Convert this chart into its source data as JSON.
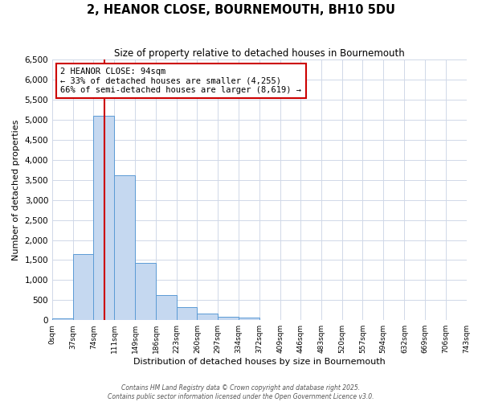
{
  "title": "2, HEANOR CLOSE, BOURNEMOUTH, BH10 5DU",
  "subtitle": "Size of property relative to detached houses in Bournemouth",
  "xlabel": "Distribution of detached houses by size in Bournemouth",
  "ylabel": "Number of detached properties",
  "bar_color": "#c5d8f0",
  "bar_edge_color": "#5b9bd5",
  "background_color": "#ffffff",
  "grid_color": "#d0d8e8",
  "vline_x": 94,
  "vline_color": "#cc0000",
  "bin_edges": [
    0,
    37,
    74,
    111,
    149,
    186,
    223,
    260,
    297,
    334,
    372,
    409,
    446,
    483,
    520,
    557,
    594,
    632,
    669,
    706,
    743
  ],
  "bin_counts": [
    50,
    1650,
    5100,
    3620,
    1430,
    620,
    320,
    155,
    80,
    55,
    0,
    0,
    0,
    0,
    0,
    0,
    0,
    0,
    0,
    0
  ],
  "annotation_title": "2 HEANOR CLOSE: 94sqm",
  "annotation_line1": "← 33% of detached houses are smaller (4,255)",
  "annotation_line2": "66% of semi-detached houses are larger (8,619) →",
  "annotation_box_color": "#ffffff",
  "annotation_box_edge": "#cc0000",
  "footer1": "Contains HM Land Registry data © Crown copyright and database right 2025.",
  "footer2": "Contains public sector information licensed under the Open Government Licence v3.0.",
  "ylim": [
    0,
    6500
  ],
  "yticks": [
    0,
    500,
    1000,
    1500,
    2000,
    2500,
    3000,
    3500,
    4000,
    4500,
    5000,
    5500,
    6000,
    6500
  ],
  "tick_labels": [
    "0sqm",
    "37sqm",
    "74sqm",
    "111sqm",
    "149sqm",
    "186sqm",
    "223sqm",
    "260sqm",
    "297sqm",
    "334sqm",
    "372sqm",
    "409sqm",
    "446sqm",
    "483sqm",
    "520sqm",
    "557sqm",
    "594sqm",
    "632sqm",
    "669sqm",
    "706sqm",
    "743sqm"
  ]
}
